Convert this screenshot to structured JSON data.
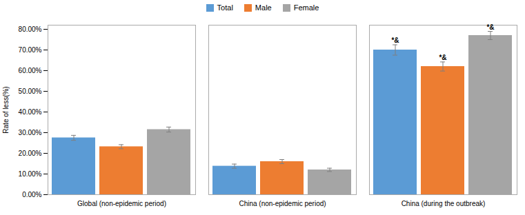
{
  "chart_data": {
    "type": "bar",
    "categories": [
      "Global (non-epidemic period)",
      "China (non-epidemic period)",
      "China (during the outbreak)"
    ],
    "series": [
      {
        "name": "Total",
        "color": "#5B9BD5",
        "values": [
          0.275,
          0.138,
          0.7
        ],
        "errors": [
          0.012,
          0.01,
          0.025
        ]
      },
      {
        "name": "Male",
        "color": "#ED7D31",
        "values": [
          0.232,
          0.16,
          0.62
        ],
        "errors": [
          0.01,
          0.01,
          0.022
        ]
      },
      {
        "name": "Female",
        "color": "#A5A5A5",
        "values": [
          0.315,
          0.12,
          0.77
        ],
        "errors": [
          0.012,
          0.008,
          0.02
        ]
      }
    ],
    "ylabel": "Rate of less(%)",
    "ylim": [
      0,
      0.82
    ],
    "yticks": [
      {
        "value": 0.0,
        "label": "0.00%"
      },
      {
        "value": 0.1,
        "label": "10.00%"
      },
      {
        "value": 0.2,
        "label": "20.00%"
      },
      {
        "value": 0.3,
        "label": "30.00%"
      },
      {
        "value": 0.4,
        "label": "40.00%"
      },
      {
        "value": 0.5,
        "label": "50.00%"
      },
      {
        "value": 0.6,
        "label": "60.00%"
      },
      {
        "value": 0.7,
        "label": "70.00%"
      },
      {
        "value": 0.8,
        "label": "80.00%"
      }
    ],
    "grid": false,
    "legend": "top",
    "annotations": [
      {
        "category": "China (during the outbreak)",
        "series": "Total",
        "text": "*&"
      },
      {
        "category": "China (during the outbreak)",
        "series": "Male",
        "text": "*&"
      },
      {
        "category": "China (during the outbreak)",
        "series": "Female",
        "text": "*&"
      }
    ]
  }
}
